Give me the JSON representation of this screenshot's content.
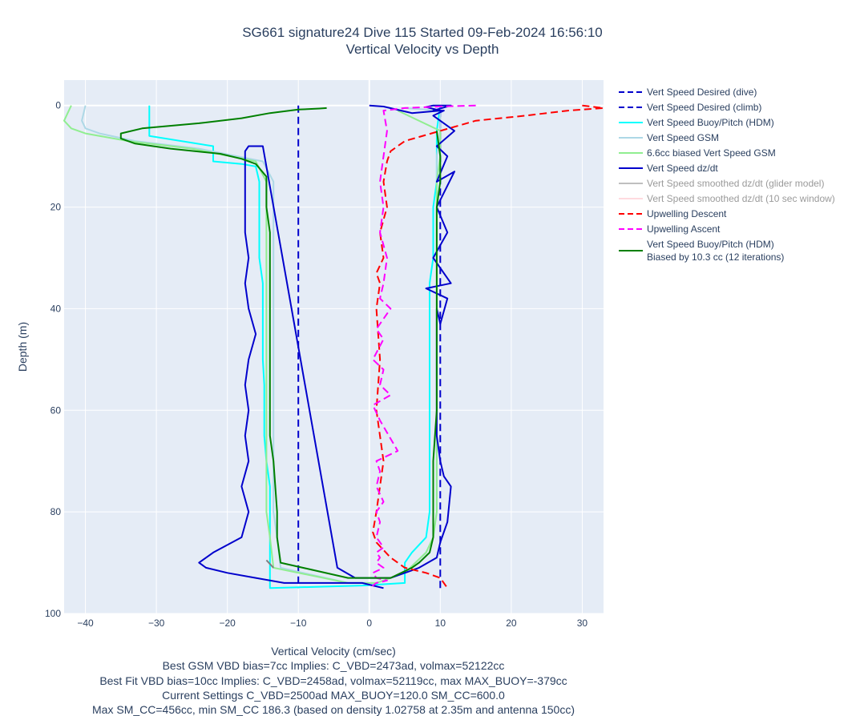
{
  "chart_data": {
    "type": "line",
    "title": "SG661 signature24 Dive 115 Started 09-Feb-2024 16:56:10",
    "subtitle": "Vertical Velocity vs Depth",
    "xlabel": "Vertical Velocity (cm/sec)",
    "ylabel": "Depth (m)",
    "xlim": [
      -43,
      33
    ],
    "ylim": [
      100,
      -5
    ],
    "y_reversed": true,
    "grid": true,
    "legend_position": "right",
    "x_ticks": [
      "−40",
      "−30",
      "−20",
      "−10",
      "0",
      "10",
      "20",
      "30"
    ],
    "x_tick_values": [
      -40,
      -30,
      -20,
      -10,
      0,
      10,
      20,
      30
    ],
    "y_ticks": [
      "0",
      "20",
      "40",
      "60",
      "80",
      "100"
    ],
    "y_tick_values": [
      0,
      20,
      40,
      60,
      80,
      100
    ],
    "notes": [
      "Best GSM VBD bias=7cc Implies: C_VBD=2473ad, volmax=52122cc",
      "Best Fit VBD bias=10cc Implies: C_VBD=2458ad, volmax=52119cc, max MAX_BUOY=-379cc",
      "Current Settings C_VBD=2500ad MAX_BUOY=120.0 SM_CC=600.0",
      "Max SM_CC=456cc, min SM_CC 186.3 (based on density 1.02758 at 2.35m and antenna 150cc)"
    ],
    "series": [
      {
        "name": "Vert Speed Desired (dive)",
        "color": "#0000cc",
        "dash": "dash",
        "width": 2,
        "legend_dim": false,
        "x": [
          -10,
          -10
        ],
        "y": [
          0,
          95
        ]
      },
      {
        "name": "Vert Speed Desired (climb)",
        "color": "#0000cc",
        "dash": "dash",
        "width": 2,
        "legend_dim": false,
        "x": [
          10,
          10
        ],
        "y": [
          95,
          0
        ]
      },
      {
        "name": "Vert Speed Buoy/Pitch (HDM)",
        "color": "#00ffff",
        "dash": "solid",
        "width": 2,
        "legend_dim": false,
        "x": [
          -31,
          -31,
          -22,
          -22,
          -18,
          -16,
          -15.5,
          -15.5,
          -15.5,
          -15.5,
          -15,
          -15,
          -15,
          -15,
          -14.8,
          -14.8,
          -14.8,
          -14.5,
          -14,
          -14,
          -14,
          -14,
          -14,
          -14,
          -1,
          5,
          5,
          6,
          8,
          8.5,
          8.5,
          8.5,
          8.5,
          8.5,
          8.5,
          8.5,
          9,
          9,
          9,
          9.5,
          9.5,
          9.5,
          10
        ],
        "y": [
          0,
          6,
          8,
          11,
          11.5,
          12,
          15,
          20,
          25,
          30,
          35,
          40,
          45,
          50,
          55,
          60,
          65,
          70,
          75,
          80,
          85,
          90,
          92,
          95,
          94.5,
          94,
          90,
          88,
          85,
          80,
          75,
          70,
          60,
          50,
          40,
          35,
          30,
          25,
          20,
          15,
          10,
          5,
          0
        ]
      },
      {
        "name": "Vert Speed GSM",
        "color": "#add8e6",
        "dash": "solid",
        "width": 2,
        "legend_dim": false,
        "x": [
          -40,
          -40.5,
          -40,
          -38,
          -33,
          -24,
          -15,
          -13.5,
          -13.5,
          -13.5,
          -13.5,
          -13.5,
          -13.5,
          -13.5,
          -13.5,
          -13.5,
          -13.5,
          -13.5,
          -13.5,
          -13.5,
          -13,
          -12.5,
          -3,
          1,
          5,
          8,
          9,
          9.5,
          9.5,
          9.5,
          9.5,
          9.5,
          9.5,
          9.5,
          9.5,
          9.5,
          9.5,
          10,
          10,
          5
        ],
        "y": [
          0,
          3,
          4.5,
          5.5,
          7,
          8.5,
          11,
          15,
          20,
          25,
          30,
          35,
          40,
          45,
          50,
          55,
          60,
          65,
          70,
          80,
          85,
          91,
          94,
          94,
          92,
          88,
          85,
          80,
          75,
          70,
          60,
          50,
          40,
          30,
          20,
          15,
          10,
          5,
          1,
          0.5
        ]
      },
      {
        "name": "6.6cc biased Vert Speed GSM",
        "color": "#90ee90",
        "dash": "solid",
        "width": 2,
        "legend_dim": false,
        "x": [
          -42,
          -43,
          -42,
          -40,
          -34,
          -25,
          -16,
          -14.5,
          -14.5,
          -14.5,
          -14.5,
          -14.5,
          -14.5,
          -14.5,
          -14.5,
          -14.5,
          -14.5,
          -14.5,
          -14.5,
          -14,
          -13.5,
          -3,
          1,
          5,
          8,
          9,
          9.5,
          9.5,
          9.5,
          9.5,
          9.5,
          9.5,
          9.5,
          9.5,
          9.5,
          10,
          10,
          4
        ],
        "y": [
          0,
          3,
          4.5,
          5.5,
          7,
          8.5,
          11,
          15,
          20,
          25,
          30,
          35,
          40,
          45,
          50,
          55,
          60,
          65,
          80,
          85,
          91,
          94,
          94,
          92,
          88,
          85,
          80,
          75,
          70,
          60,
          50,
          40,
          30,
          20,
          15,
          10,
          5,
          1
        ]
      },
      {
        "name": "Vert Speed dz/dt",
        "color": "#0000cc",
        "dash": "solid",
        "width": 2,
        "legend_dim": false,
        "x": [
          2,
          -1,
          -4,
          -8,
          -12,
          -16,
          -20,
          -23,
          -24,
          -22,
          -18,
          -17,
          -18,
          -17,
          -17.5,
          -17,
          -17.5,
          -17,
          -16,
          -17,
          -17.5,
          -17,
          -17.5,
          -17.5,
          -17.5,
          -17.5,
          -17.5,
          -17.5,
          -17.5,
          -17.5,
          -17.5,
          -17,
          -17,
          -16.5,
          -16,
          -16,
          -16,
          -15.5,
          -15.5,
          -15,
          -4.5,
          -2,
          3,
          5,
          7,
          9.5,
          10,
          11,
          11.5,
          10.5,
          10,
          9.5,
          9.5,
          9.5,
          9.5,
          9.5,
          9.5,
          10,
          11,
          8,
          11.5,
          9,
          11,
          9.5,
          12,
          9.5,
          11,
          9.5,
          12,
          9,
          10.5,
          9,
          11.5,
          9,
          8,
          10,
          6,
          2,
          0
        ],
        "y": [
          95,
          94,
          94,
          94,
          94,
          93,
          92,
          91,
          90,
          88,
          85,
          80,
          75,
          70,
          65,
          60,
          55,
          50,
          45,
          40,
          35,
          30,
          25,
          20,
          18,
          16,
          14,
          12,
          11,
          10,
          9,
          8,
          8,
          8,
          8,
          8,
          8,
          8,
          8,
          8,
          91,
          93,
          93,
          92,
          91,
          89,
          86,
          82,
          75,
          73,
          70,
          65,
          60,
          55,
          50,
          45,
          40,
          43,
          38,
          36,
          35,
          30,
          25,
          20,
          13,
          15,
          10,
          8,
          5,
          2,
          1,
          1,
          0,
          0,
          0.3,
          1,
          1.5,
          0.2,
          0
        ]
      },
      {
        "name": "Vert Speed smoothed dz/dt (glider model)",
        "color": "#808080",
        "dash": "solid",
        "width": 2,
        "legend_dim": true,
        "x": [
          -13.5,
          -14.5
        ],
        "y": [
          91,
          89.5
        ]
      },
      {
        "name": "Vert Speed smoothed dz/dt (10 sec window)",
        "color": "#ffb6c1",
        "dash": "solid",
        "width": 2,
        "legend_dim": true,
        "x": [],
        "y": []
      },
      {
        "name": "Upwelling Descent",
        "color": "#ff0000",
        "dash": "dash",
        "width": 2,
        "legend_dim": false,
        "x": [
          30,
          33,
          28,
          22,
          15,
          10,
          5,
          3,
          2.5,
          2,
          2.5,
          1.5,
          2,
          1,
          1.5,
          1,
          1.5,
          1,
          2,
          1,
          0.5,
          1,
          3,
          5,
          8,
          10,
          11
        ],
        "y": [
          0,
          0.5,
          1,
          2,
          3,
          5,
          7,
          9,
          11,
          15,
          20,
          25,
          30,
          33,
          35,
          40,
          50,
          60,
          70,
          80,
          84,
          86,
          89,
          91,
          92,
          93,
          95
        ]
      },
      {
        "name": "Upwelling Ascent",
        "color": "#ff00ff",
        "dash": "dash",
        "width": 2,
        "legend_dim": false,
        "x": [
          15,
          10,
          5,
          2,
          2.5,
          2,
          1.5,
          2,
          1.5,
          2.5,
          2,
          1.5,
          3,
          1,
          2,
          0.5,
          2,
          1.5,
          3,
          0.5,
          1.5,
          4,
          1,
          1.5,
          1,
          2,
          1,
          1.5,
          1,
          2,
          1,
          1.5,
          1,
          2,
          0.5,
          1,
          2.5,
          1,
          0.5,
          1
        ],
        "y": [
          0,
          0.2,
          0.5,
          1,
          5,
          10,
          15,
          20,
          25,
          30,
          35,
          38,
          40,
          44,
          46,
          50,
          52,
          55,
          57,
          59,
          62,
          68,
          70,
          72,
          75,
          78,
          80,
          82,
          85,
          87,
          88,
          89,
          90,
          91,
          92,
          93,
          93.5,
          94,
          94.5,
          95
        ]
      },
      {
        "name": "Vert Speed Buoy/Pitch (HDM)\nBiased by 10.3 cc (12 iterations)",
        "color": "#008000",
        "dash": "solid",
        "width": 2,
        "legend_dim": false,
        "x": [
          -6,
          -7,
          -10,
          -14,
          -18,
          -24,
          -32,
          -35,
          -35,
          -33,
          -28,
          -21,
          -18,
          -16,
          -14.5,
          -14.5,
          -14,
          -14,
          -14,
          -14,
          -14,
          -14,
          -14,
          -14,
          -14,
          -13.5,
          -13,
          -13,
          -12.5,
          -3,
          3,
          6,
          7,
          8.5,
          9,
          9,
          9,
          9,
          9.5,
          9.5,
          9.5,
          9.5,
          9.5,
          10,
          10,
          9.5
        ],
        "y": [
          0.5,
          0.6,
          0.8,
          1.5,
          2.5,
          3.5,
          4.5,
          5.5,
          6.5,
          7.5,
          8.5,
          9.5,
          10.5,
          11.5,
          14,
          20,
          25,
          30,
          35,
          40,
          45,
          50,
          55,
          60,
          65,
          70,
          80,
          85,
          90,
          93,
          93,
          91,
          90,
          88,
          85,
          80,
          75,
          70,
          60,
          50,
          40,
          30,
          20,
          15,
          10,
          5
        ]
      }
    ]
  }
}
